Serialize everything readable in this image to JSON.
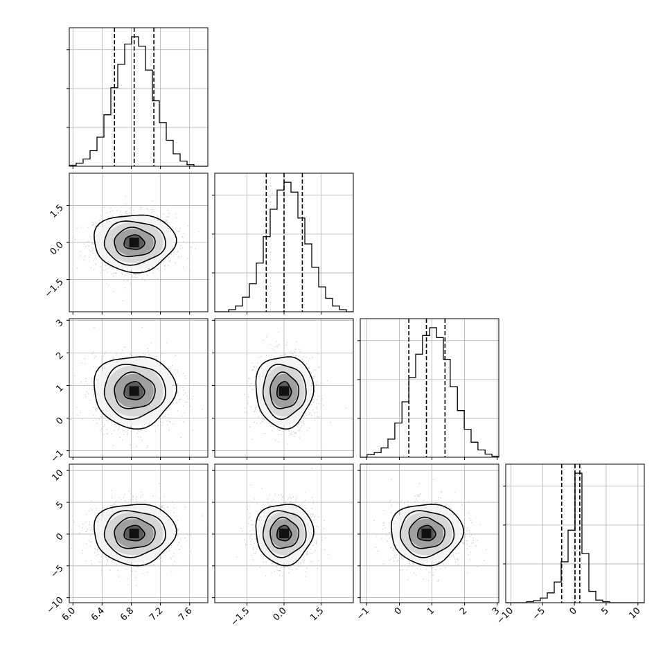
{
  "chart_data": {
    "type": "corner",
    "title": "",
    "variables": [
      "",
      "",
      "",
      ""
    ],
    "ranges": [
      [
        5.95,
        7.85
      ],
      [
        -2.8,
        2.8
      ],
      [
        -1.2,
        3.05
      ],
      [
        -10.8,
        11
      ]
    ],
    "ticks": [
      [
        "6.0",
        "6.4",
        "6.8",
        "7.2",
        "7.6"
      ],
      [
        "-1.5",
        "0.0",
        "1.5"
      ],
      [
        "-1",
        "0",
        "1",
        "2",
        "3"
      ],
      [
        "-10",
        "-5",
        "0",
        "5",
        "10"
      ]
    ],
    "quantiles": [
      [
        6.57,
        6.84,
        7.11
      ],
      [
        -0.72,
        0.0,
        0.74
      ],
      [
        0.29,
        0.83,
        1.4
      ],
      [
        -2.0,
        0.1,
        0.85
      ]
    ],
    "grid": true,
    "marginals": [
      {
        "bin_edges": [
          5.95,
          6.045,
          6.14,
          6.235,
          6.33,
          6.425,
          6.52,
          6.615,
          6.71,
          6.805,
          6.9,
          6.995,
          7.09,
          7.185,
          7.28,
          7.375,
          7.47,
          7.565,
          7.66,
          7.755,
          7.85
        ],
        "counts": [
          4,
          12,
          28,
          60,
          112,
          198,
          302,
          392,
          470,
          498,
          462,
          370,
          252,
          168,
          100,
          48,
          20,
          6,
          0,
          0
        ]
      },
      {
        "bin_edges": [
          -2.8,
          -2.52,
          -2.24,
          -1.96,
          -1.68,
          -1.4,
          -1.12,
          -0.84,
          -0.56,
          -0.28,
          0.0,
          0.28,
          0.56,
          0.84,
          1.12,
          1.4,
          1.68,
          1.96,
          2.24,
          2.52,
          2.8
        ],
        "counts": [
          0,
          0,
          8,
          22,
          56,
          108,
          188,
          290,
          396,
          470,
          500,
          462,
          362,
          262,
          172,
          96,
          52,
          22,
          8,
          0
        ]
      },
      {
        "bin_edges": [
          -1.2,
          -0.99,
          -0.77,
          -0.56,
          -0.35,
          -0.14,
          0.08,
          0.29,
          0.5,
          0.71,
          0.93,
          1.14,
          1.35,
          1.56,
          1.78,
          1.99,
          2.2,
          2.41,
          2.63,
          2.84,
          3.05
        ],
        "counts": [
          0,
          10,
          18,
          36,
          70,
          132,
          214,
          308,
          398,
          470,
          500,
          462,
          378,
          272,
          180,
          108,
          58,
          28,
          12,
          4
        ]
      },
      {
        "bin_edges": [
          -10.8,
          -9.71,
          -8.62,
          -7.53,
          -6.44,
          -5.35,
          -4.26,
          -3.17,
          -2.08,
          -0.99,
          0.1,
          1.19,
          2.28,
          3.37,
          4.46,
          5.55,
          6.64,
          7.73,
          8.82,
          9.91,
          11.0
        ],
        "counts": [
          0,
          0,
          0,
          4,
          8,
          18,
          38,
          80,
          158,
          280,
          500,
          190,
          44,
          10,
          4,
          0,
          0,
          0,
          0,
          0
        ]
      }
    ],
    "pairs": [
      {
        "x_var": 0,
        "y_var": 1,
        "center": [
          6.84,
          0.0
        ],
        "spread": [
          0.28,
          0.58
        ]
      },
      {
        "x_var": 0,
        "y_var": 2,
        "center": [
          6.84,
          0.83
        ],
        "spread": [
          0.28,
          0.55
        ]
      },
      {
        "x_var": 1,
        "y_var": 2,
        "center": [
          0.0,
          0.83
        ],
        "spread": [
          0.58,
          0.55
        ]
      },
      {
        "x_var": 0,
        "y_var": 3,
        "center": [
          6.84,
          0.1
        ],
        "spread": [
          0.28,
          2.4
        ]
      },
      {
        "x_var": 1,
        "y_var": 3,
        "center": [
          0.0,
          0.1
        ],
        "spread": [
          0.58,
          2.4
        ]
      },
      {
        "x_var": 2,
        "y_var": 3,
        "center": [
          0.83,
          0.1
        ],
        "spread": [
          0.55,
          2.4
        ]
      }
    ],
    "contour_levels_sigma": [
      0.5,
      1.0,
      1.5,
      2.0
    ],
    "colors": {
      "line": "#000000",
      "grid": "#b0b0b0",
      "points": "#b8b8b8"
    }
  }
}
